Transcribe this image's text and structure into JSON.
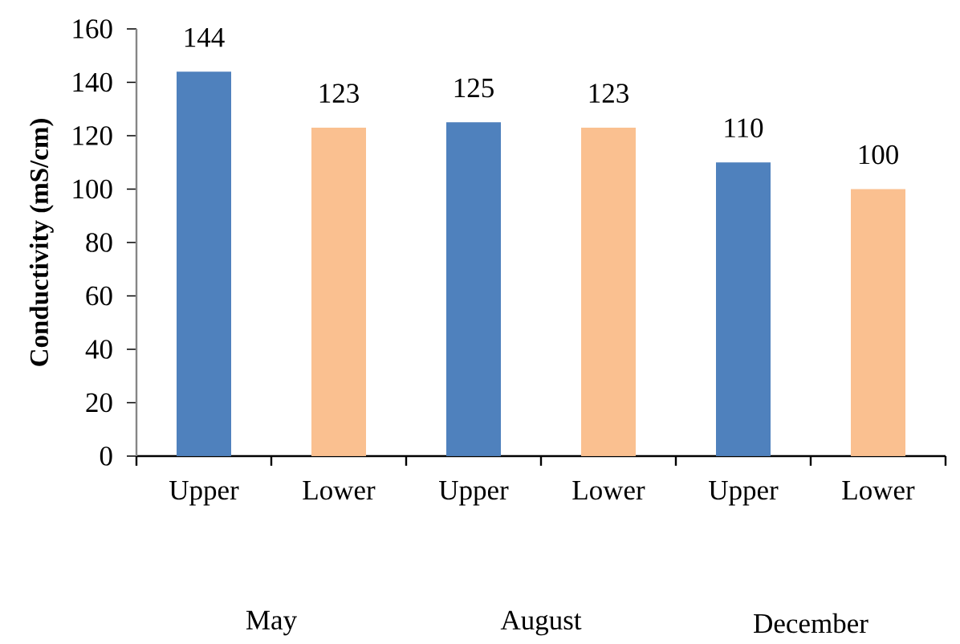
{
  "chart_data": {
    "type": "bar",
    "ylabel": "Conductivity (mS/cm)",
    "categories": [
      "Upper",
      "Lower",
      "Upper",
      "Lower",
      "Upper",
      "Lower"
    ],
    "values": [
      144,
      123,
      125,
      123,
      110,
      100
    ],
    "colors": [
      "#4f81bd",
      "#fac090",
      "#4f81bd",
      "#fac090",
      "#4f81bd",
      "#fac090"
    ],
    "ylim": [
      0,
      160
    ],
    "yticks": [
      0,
      20,
      40,
      60,
      80,
      100,
      120,
      140,
      160
    ],
    "data_labels": true,
    "annotations": [
      "May",
      "August",
      "December"
    ]
  }
}
